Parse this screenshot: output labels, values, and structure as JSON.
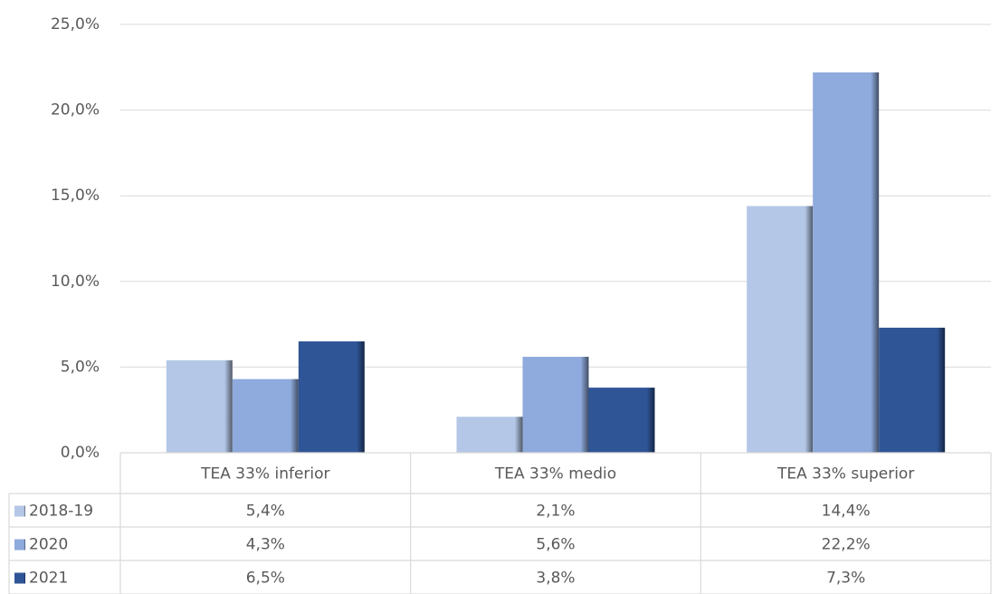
{
  "chart_data": {
    "type": "bar",
    "categories": [
      "TEA 33% inferior",
      "TEA 33% medio",
      "TEA 33% superior"
    ],
    "series": [
      {
        "name": "2018-19",
        "color": "#b4c7e7",
        "values": [
          5.4,
          2.1,
          14.4
        ],
        "value_labels": [
          "5,4%",
          "2,1%",
          "14,4%"
        ]
      },
      {
        "name": "2020",
        "color": "#8faadc",
        "values": [
          4.3,
          5.6,
          22.2
        ],
        "value_labels": [
          "4,3%",
          "5,6%",
          "22,2%"
        ]
      },
      {
        "name": "2021",
        "color": "#2f5597",
        "values": [
          6.5,
          3.8,
          7.3
        ],
        "value_labels": [
          "6,5%",
          "3,8%",
          "7,3%"
        ]
      }
    ],
    "ylim": [
      0,
      25
    ],
    "yticks": [
      {
        "value": 0,
        "label": "0,0%"
      },
      {
        "value": 5,
        "label": "5,0%"
      },
      {
        "value": 10,
        "label": "10,0%"
      },
      {
        "value": 15,
        "label": "15,0%"
      },
      {
        "value": 20,
        "label": "20,0%"
      },
      {
        "value": 25,
        "label": "25,0%"
      }
    ],
    "grid": true,
    "data_table": true
  }
}
